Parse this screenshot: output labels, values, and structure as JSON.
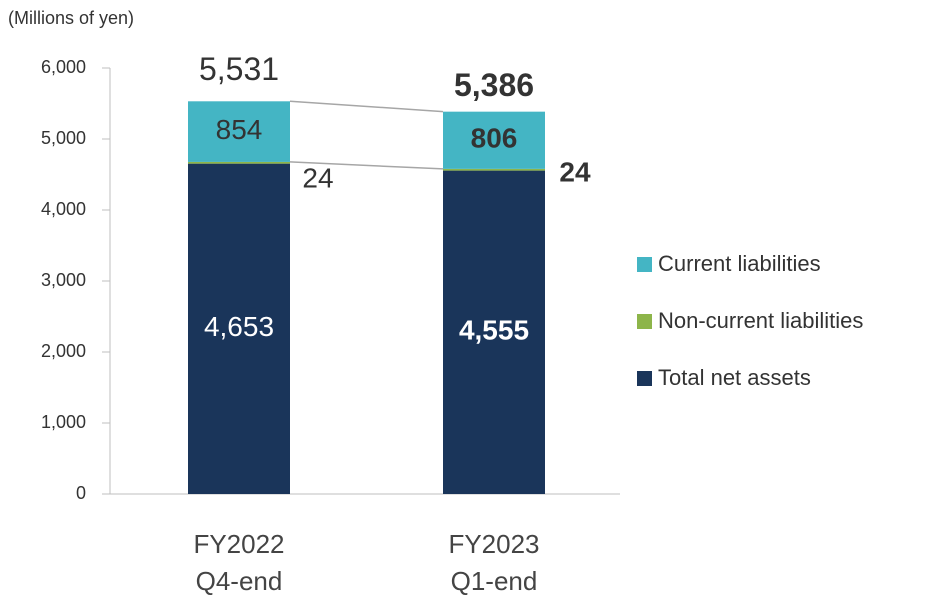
{
  "chart_data": {
    "type": "stacked_bar",
    "unit_label": "(Millions of yen)",
    "categories": [
      "FY2022 Q4-end",
      "FY2023 Q1-end"
    ],
    "series": [
      {
        "name": "Total net assets",
        "color": "#1a355a",
        "values": [
          4653,
          4555
        ],
        "value_labels": [
          "4,653",
          "4,555"
        ]
      },
      {
        "name": "Non-current liabilities",
        "color": "#8db54a",
        "values": [
          24,
          24
        ]
      },
      {
        "name": "Current liabilities",
        "color": "#44b5c4",
        "values": [
          854,
          806
        ]
      }
    ],
    "totals": {
      "values": [
        5531,
        5386
      ],
      "value_labels": [
        "5,531",
        "5,386"
      ]
    },
    "ylim": [
      0,
      6000
    ],
    "yticks": [
      0,
      {
        "value": 1000,
        "label": "1,000"
      },
      {
        "value": 2000,
        "label": "2,000"
      },
      {
        "value": 3000,
        "label": "3,000"
      },
      {
        "value": 4000,
        "label": "4,000"
      },
      {
        "value": 5000,
        "label": "5,000"
      },
      {
        "value": 6000,
        "label": "6,000"
      }
    ],
    "legend": "right"
  }
}
